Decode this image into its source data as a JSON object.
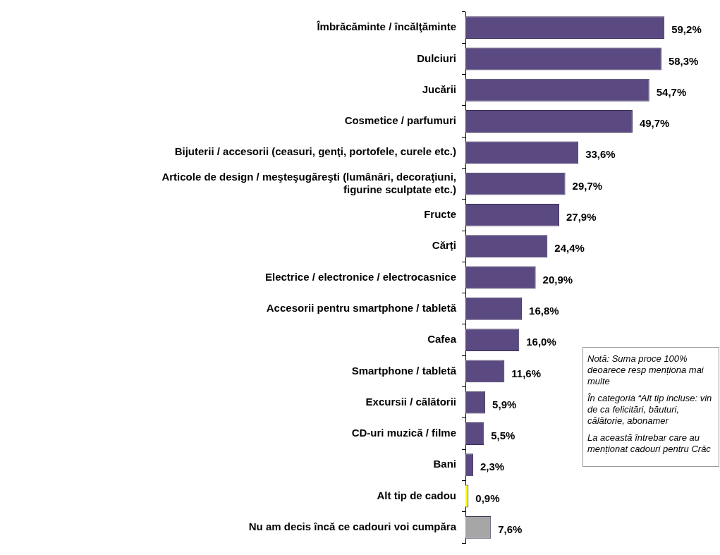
{
  "chart_data": {
    "type": "bar",
    "orientation": "horizontal",
    "categories": [
      "Îmbrăcăminte / încălţăminte",
      "Dulciuri",
      "Jucării",
      "Cosmetice / parfumuri",
      "Bijuterii / accesorii (ceasuri, genţi, portofele, curele etc.)",
      "Articole de design / meşteşugăreşti (lumânări, decoraţiuni, figurine sculptate etc.)",
      "Fructe",
      "Cărți",
      "Electrice / electronice / electrocasnice",
      "Accesorii pentru smartphone / tabletă",
      "Cafea",
      "Smartphone / tabletă",
      "Excursii / călătorii",
      "CD-uri muzică / filme",
      "Bani",
      "Alt tip de cadou",
      "Nu am decis încă ce cadouri voi cumpăra"
    ],
    "values": [
      59.2,
      58.3,
      54.7,
      49.7,
      33.6,
      29.7,
      27.9,
      24.4,
      20.9,
      16.8,
      16.0,
      11.6,
      5.9,
      5.5,
      2.3,
      0.9,
      7.6
    ],
    "value_labels": [
      "59,2%",
      "58,3%",
      "54,7%",
      "49,7%",
      "33,6%",
      "29,7%",
      "27,9%",
      "24,4%",
      "20,9%",
      "16,8%",
      "16,0%",
      "11,6%",
      "5,9%",
      "5,5%",
      "2,3%",
      "0,9%",
      "7,6%"
    ],
    "colors": [
      "#5b4a82",
      "#5b4a82",
      "#5b4a82",
      "#5b4a82",
      "#5b4a82",
      "#5b4a82",
      "#5b4a82",
      "#5b4a82",
      "#5b4a82",
      "#5b4a82",
      "#5b4a82",
      "#5b4a82",
      "#5b4a82",
      "#5b4a82",
      "#5b4a82",
      "#ffff00",
      "#a6a6a6"
    ],
    "annotations": [
      "Notă: Suma proce 100% deoarece resp menționa mai multe",
      "În categoria “Alt tip incluse: vin de ca felicitări, băuturi, călătorie, abonamer",
      "La această întrebar care au menționat cadouri pentru Crăc"
    ]
  }
}
